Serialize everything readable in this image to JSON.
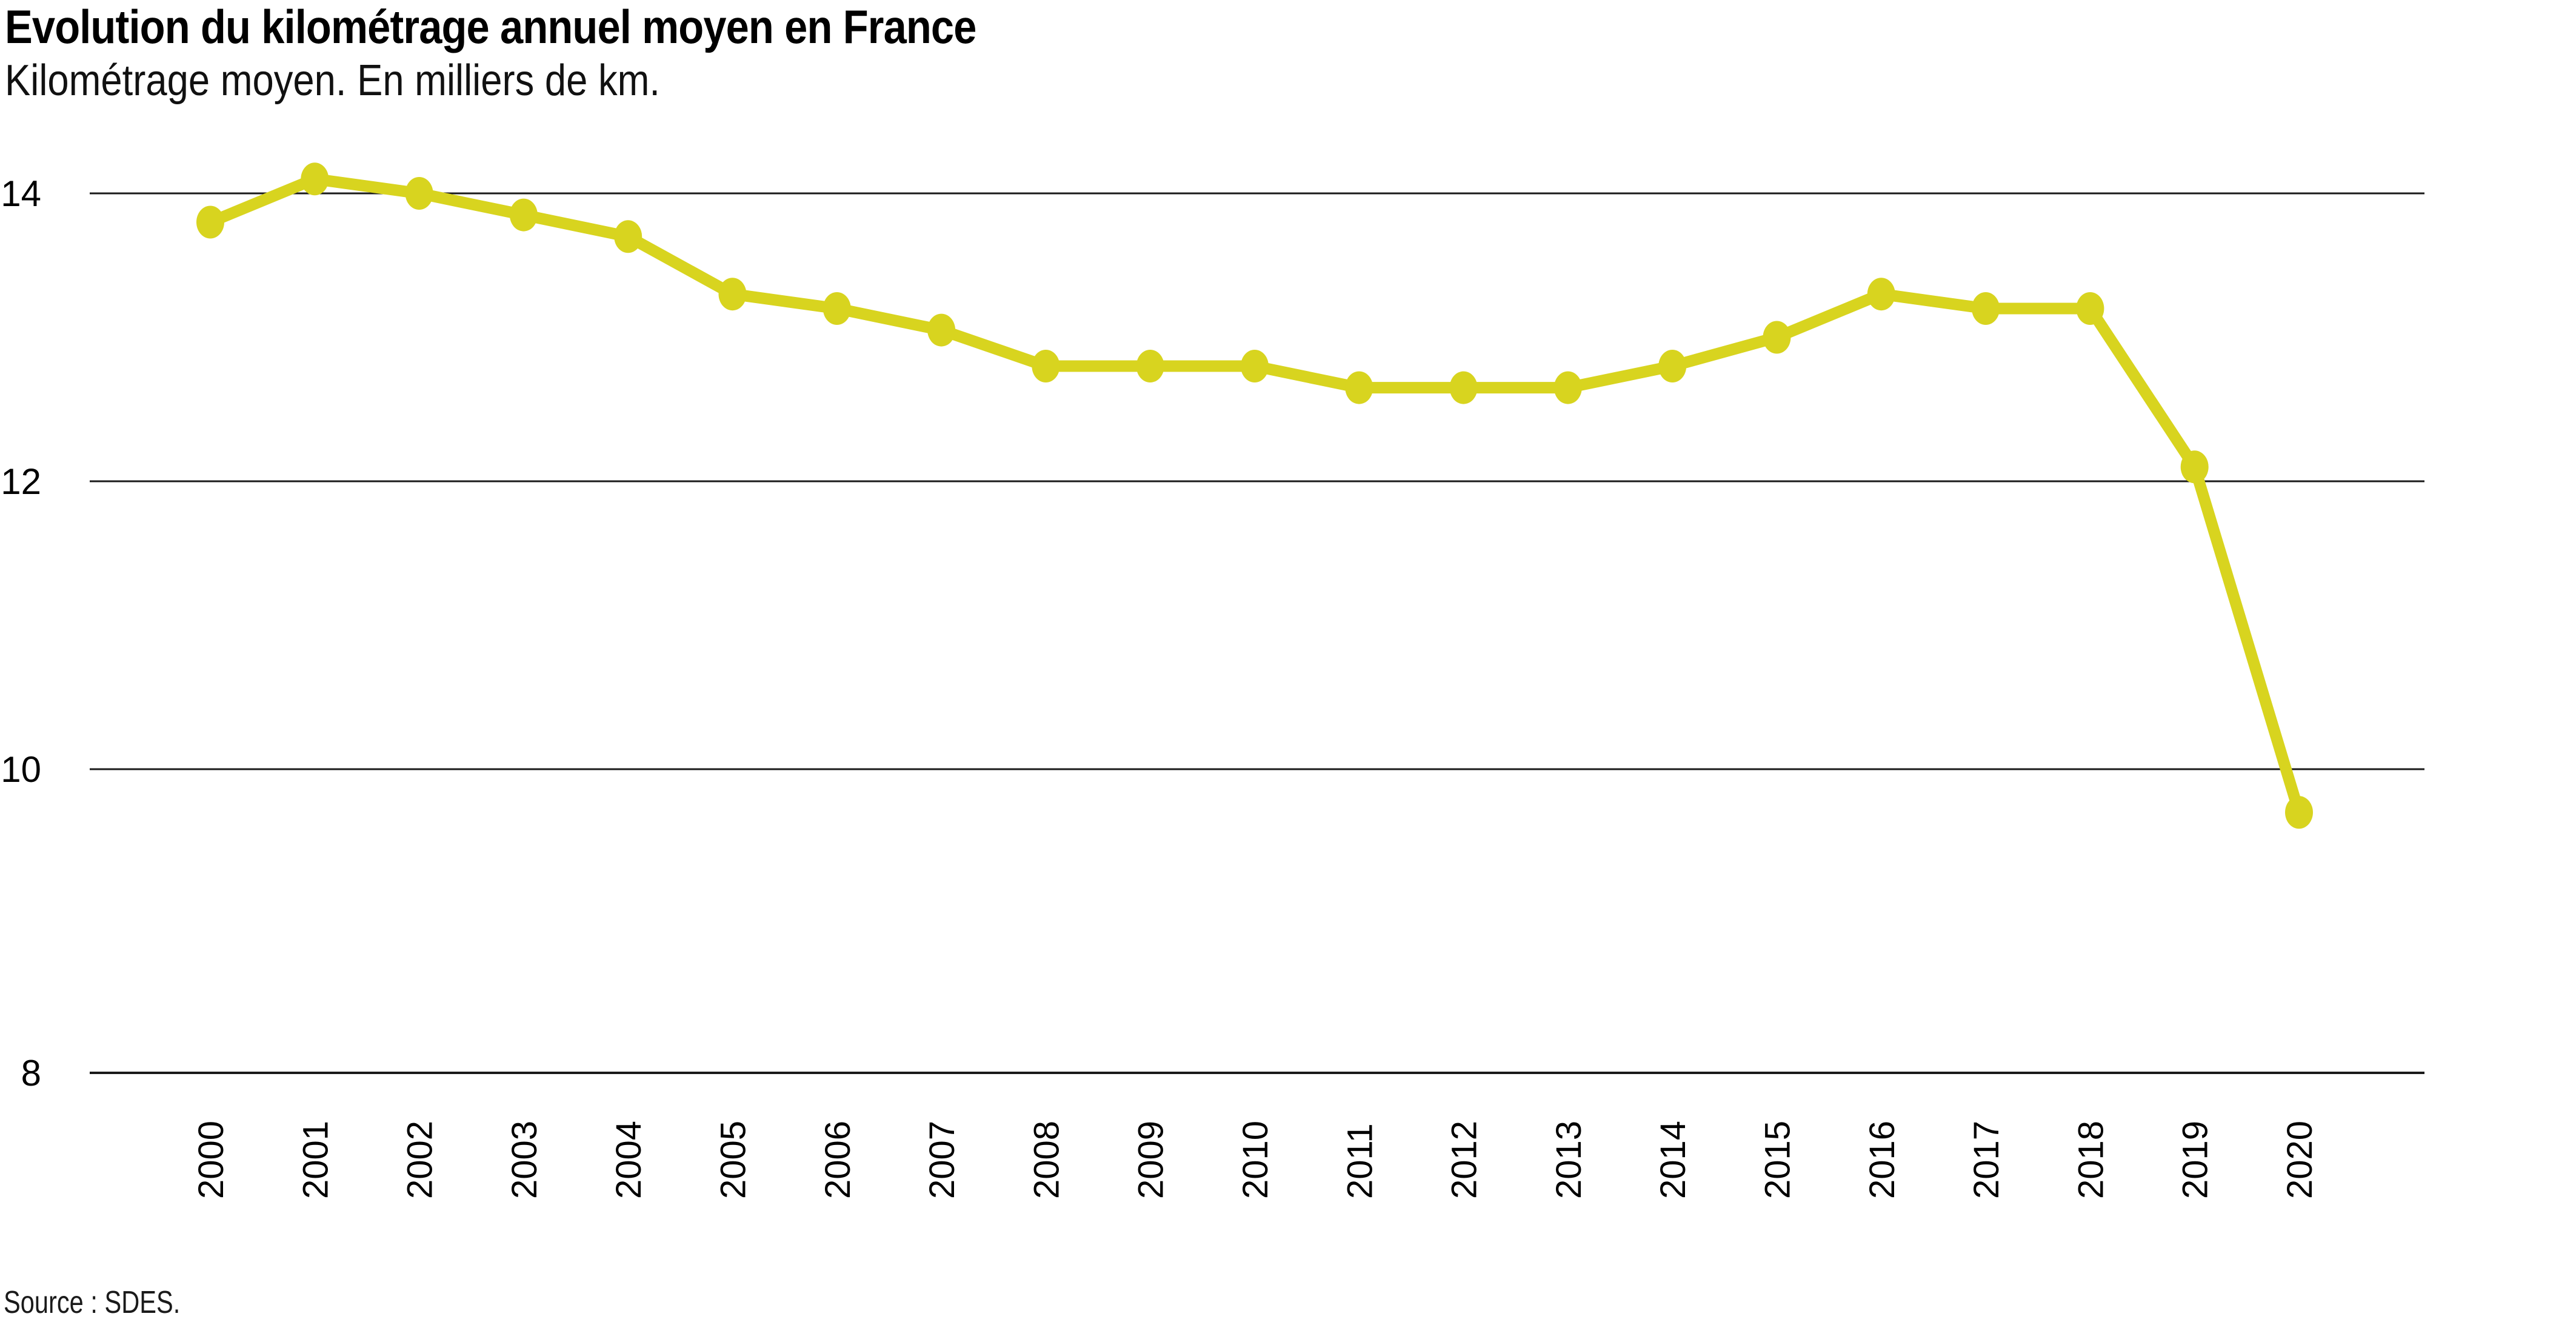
{
  "header": {
    "title": "Evolution du kilométrage annuel moyen en France",
    "subtitle": "Kilométrage moyen. En milliers de km."
  },
  "footer": {
    "source_label": "Source : SDES."
  },
  "colors": {
    "line": "#d8d41f",
    "marker": "#d8d41f",
    "grid": "#1a1a1a",
    "text": "#000000"
  },
  "chart_data": {
    "type": "line",
    "title": "Evolution du kilométrage annuel moyen en France",
    "subtitle": "Kilométrage moyen. En milliers de km.",
    "source": "Source : SDES.",
    "unit": "milliers de km",
    "categories": [
      "2000",
      "2001",
      "2002",
      "2003",
      "2004",
      "2005",
      "2006",
      "2007",
      "2008",
      "2009",
      "2010",
      "2011",
      "2012",
      "2013",
      "2014",
      "2015",
      "2016",
      "2017",
      "2018",
      "2019",
      "2020"
    ],
    "values": [
      13.8,
      14.1,
      14.0,
      13.85,
      13.7,
      13.3,
      13.2,
      13.05,
      12.8,
      12.8,
      12.8,
      12.65,
      12.65,
      12.65,
      12.8,
      13.0,
      13.3,
      13.2,
      13.2,
      12.1,
      9.7
    ],
    "y_ticks": [
      14,
      12,
      10,
      8
    ],
    "ylim": [
      8,
      14.3
    ],
    "xlabel": "",
    "ylabel": "",
    "grid": "horizontal",
    "legend": "none",
    "marker": "circle"
  }
}
